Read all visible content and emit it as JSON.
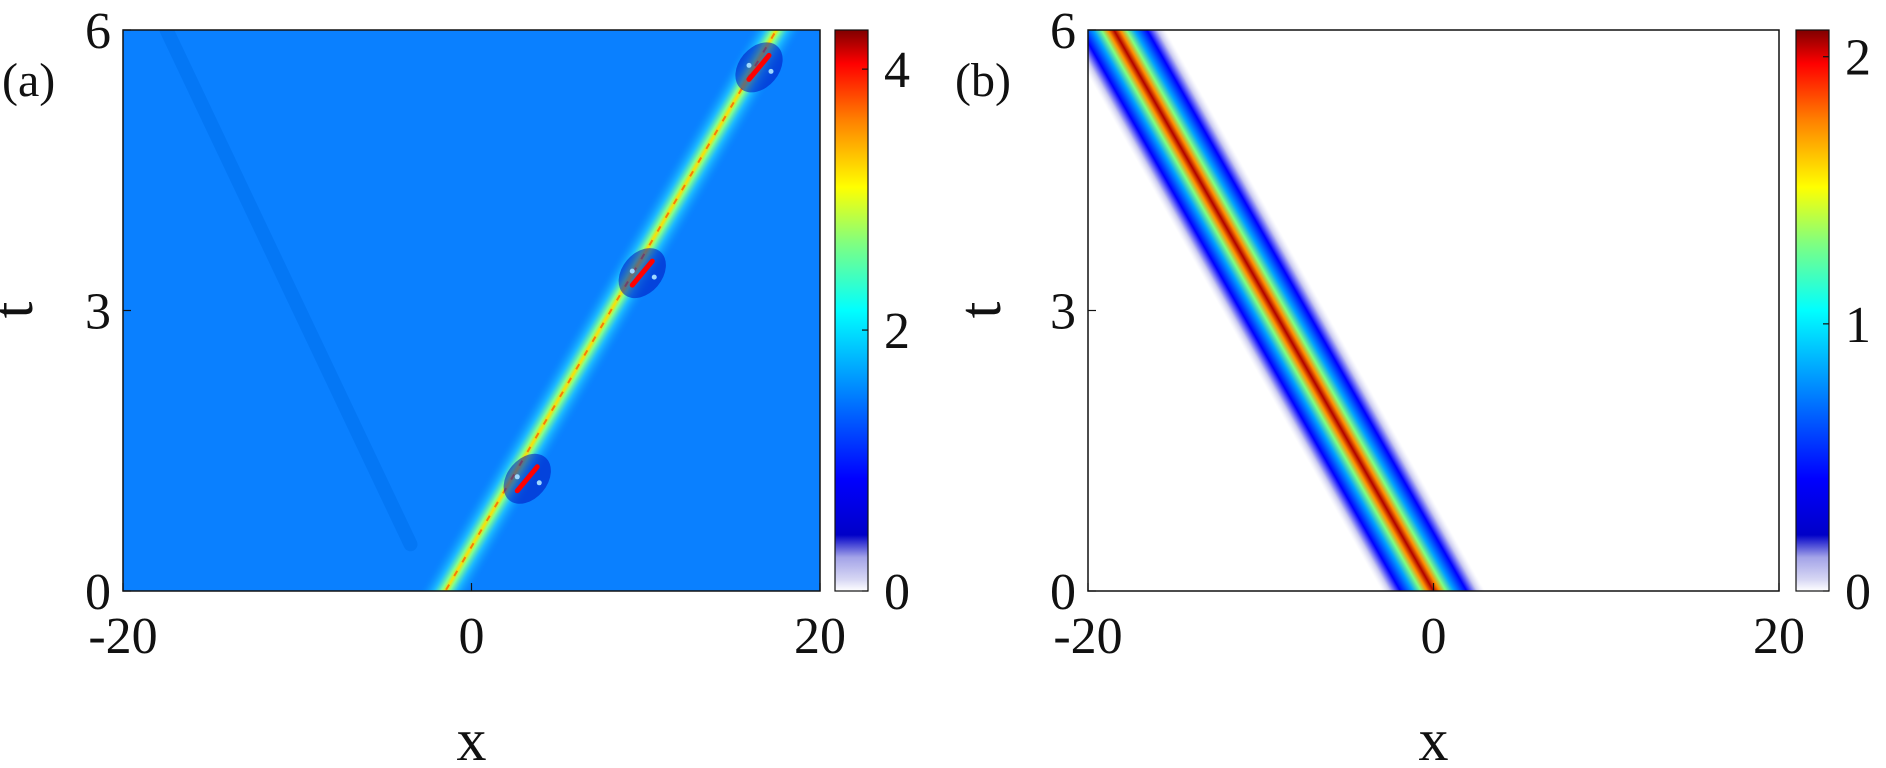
{
  "chart_data": [
    {
      "type": "heatmap",
      "panel_label": "(a)",
      "xlabel": "x",
      "ylabel": "t",
      "xlim": [
        -20,
        20
      ],
      "ylim": [
        0,
        6
      ],
      "x_ticks": [
        "-20",
        "0",
        "20"
      ],
      "y_ticks": [
        "0",
        "3",
        "6"
      ],
      "x_tick_values": [
        -20,
        0,
        20
      ],
      "y_tick_values": [
        0,
        3,
        6
      ],
      "colorbar": {
        "range": [
          0,
          4.3
        ],
        "ticks": [
          "0",
          "2",
          "4"
        ],
        "tick_values": [
          0,
          2,
          4
        ]
      },
      "background_level": 1.0,
      "features": [
        {
          "kind": "main-soliton-track",
          "start": {
            "x": -1.5,
            "t": 0
          },
          "end": {
            "x": 17.5,
            "t": 6
          },
          "peak_value": 4.2
        },
        {
          "kind": "faint-dark-track",
          "start": {
            "x": -3.5,
            "t": 0.5
          },
          "end": {
            "x": -17.5,
            "t": 6
          },
          "value": 0.9
        },
        {
          "kind": "collision-points",
          "points": [
            {
              "x": 3.2,
              "t": 1.2
            },
            {
              "x": 9.8,
              "t": 3.4
            },
            {
              "x": 16.5,
              "t": 5.6
            }
          ]
        }
      ]
    },
    {
      "type": "heatmap",
      "panel_label": "(b)",
      "xlabel": "x",
      "ylabel": "t",
      "xlim": [
        -20,
        20
      ],
      "ylim": [
        0,
        6
      ],
      "x_ticks": [
        "-20",
        "0",
        "20"
      ],
      "y_ticks": [
        "0",
        "3",
        "6"
      ],
      "x_tick_values": [
        -20,
        0,
        20
      ],
      "y_tick_values": [
        0,
        3,
        6
      ],
      "colorbar": {
        "range": [
          0,
          2.1
        ],
        "ticks": [
          "0",
          "1",
          "2"
        ],
        "tick_values": [
          0,
          1,
          2
        ]
      },
      "background_level": 0.0,
      "features": [
        {
          "kind": "bright-soliton-track",
          "start": {
            "x": 0,
            "t": 0
          },
          "end": {
            "x": -18.5,
            "t": 6
          },
          "peak_value": 2.0
        }
      ]
    }
  ],
  "colors": {
    "colormap": [
      "#00008f",
      "#0000ff",
      "#0080ff",
      "#00ffff",
      "#80ff80",
      "#ffff00",
      "#ff8000",
      "#ff0000",
      "#800000"
    ],
    "axis": "#111111"
  }
}
